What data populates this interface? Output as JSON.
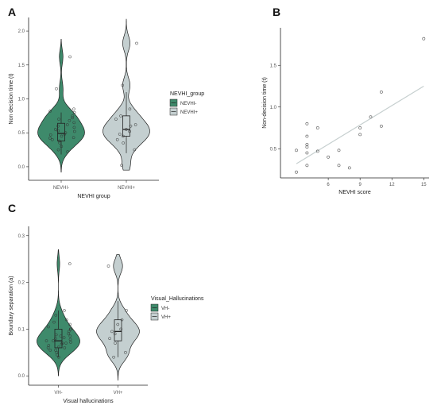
{
  "panels": {
    "a": "A",
    "b": "B",
    "c": "C"
  },
  "colors": {
    "group_neg": "#3e8a6b",
    "group_pos": "#c4cfd0",
    "outline": "#222222",
    "fit_line": "#c6cfcf",
    "axis": "#222222"
  },
  "chart_data": [
    {
      "type": "violin",
      "panel": "A",
      "xlabel": "NEVHI group",
      "ylabel": "Non decision time (t)",
      "ylim": [
        -0.2,
        2.2
      ],
      "yticks": [
        "0.0",
        "0.5",
        "1.0",
        "1.5",
        "2.0"
      ],
      "categories": [
        "NEVHI-",
        "NEVHI+"
      ],
      "legend_title": "NEVHI_group",
      "legend_position": "right",
      "series": [
        {
          "name": "NEVHI-",
          "color": "#3e8a6b",
          "min": -0.08,
          "max": 1.88,
          "box": {
            "q1": 0.38,
            "median": 0.49,
            "q3": 0.64,
            "whisker_low": 0.18,
            "whisker_high": 0.8
          },
          "points": [
            0.3,
            0.35,
            0.38,
            0.4,
            0.42,
            0.45,
            0.47,
            0.48,
            0.5,
            0.52,
            0.55,
            0.58,
            0.6,
            0.62,
            0.65,
            0.7,
            0.72,
            0.75,
            0.8,
            0.82,
            0.85,
            1.15,
            1.62,
            0.25,
            0.22,
            0.43,
            0.53,
            0.68
          ]
        },
        {
          "name": "NEVHI+",
          "color": "#c4cfd0",
          "min": -0.05,
          "max": 2.18,
          "box": {
            "q1": 0.45,
            "median": 0.55,
            "q3": 0.75,
            "whisker_low": 0.2,
            "whisker_high": 1.1
          },
          "points": [
            0.02,
            0.25,
            0.35,
            0.4,
            0.45,
            0.48,
            0.52,
            0.55,
            0.6,
            0.62,
            0.7,
            0.75,
            0.85,
            1.2,
            1.82
          ]
        }
      ]
    },
    {
      "type": "scatter",
      "panel": "B",
      "xlabel": "NEVHI score",
      "ylabel": "Non-decision time (t)",
      "xlim": [
        1.5,
        15.5
      ],
      "ylim": [
        0.15,
        1.95
      ],
      "xticks": [
        6,
        9,
        12,
        15
      ],
      "yticks": [
        "0.5",
        "1.0",
        "1.5"
      ],
      "points": [
        [
          3,
          0.22
        ],
        [
          3,
          0.48
        ],
        [
          4,
          0.3
        ],
        [
          4,
          0.45
        ],
        [
          4,
          0.52
        ],
        [
          4,
          0.55
        ],
        [
          4,
          0.65
        ],
        [
          4,
          0.8
        ],
        [
          5,
          0.47
        ],
        [
          5,
          0.75
        ],
        [
          6,
          0.4
        ],
        [
          7,
          0.3
        ],
        [
          7,
          0.48
        ],
        [
          8,
          0.27
        ],
        [
          9,
          0.67
        ],
        [
          9,
          0.75
        ],
        [
          10,
          0.88
        ],
        [
          11,
          0.77
        ],
        [
          11,
          1.18
        ],
        [
          15,
          1.82
        ]
      ],
      "fit": {
        "x": [
          3,
          15
        ],
        "y": [
          0.32,
          1.25
        ]
      }
    },
    {
      "type": "violin",
      "panel": "C",
      "xlabel": "Visual hallucinations",
      "ylabel": "Boundary separation (a)",
      "ylim": [
        -0.02,
        0.32
      ],
      "yticks": [
        "0.0",
        "0.1",
        "0.2",
        "0.3"
      ],
      "categories": [
        "VH-",
        "VH+"
      ],
      "legend_title": "Visual_Hallucinations",
      "legend_position": "right",
      "series": [
        {
          "name": "VH-",
          "color": "#3e8a6b",
          "min": 0.0,
          "max": 0.27,
          "box": {
            "q1": 0.06,
            "median": 0.075,
            "q3": 0.1,
            "whisker_low": 0.04,
            "whisker_high": 0.14
          },
          "points": [
            0.04,
            0.045,
            0.05,
            0.055,
            0.06,
            0.062,
            0.065,
            0.068,
            0.07,
            0.072,
            0.075,
            0.078,
            0.08,
            0.082,
            0.085,
            0.088,
            0.09,
            0.095,
            0.1,
            0.105,
            0.11,
            0.115,
            0.12,
            0.13,
            0.14,
            0.24,
            0.055,
            0.07,
            0.085,
            0.1,
            0.06,
            0.075
          ]
        },
        {
          "name": "VH+",
          "color": "#c4cfd0",
          "min": -0.01,
          "max": 0.26,
          "box": {
            "q1": 0.075,
            "median": 0.095,
            "q3": 0.12,
            "whisker_low": 0.04,
            "whisker_high": 0.16
          },
          "points": [
            0.04,
            0.05,
            0.07,
            0.08,
            0.09,
            0.095,
            0.1,
            0.11,
            0.12,
            0.14,
            0.235
          ]
        }
      ]
    }
  ]
}
